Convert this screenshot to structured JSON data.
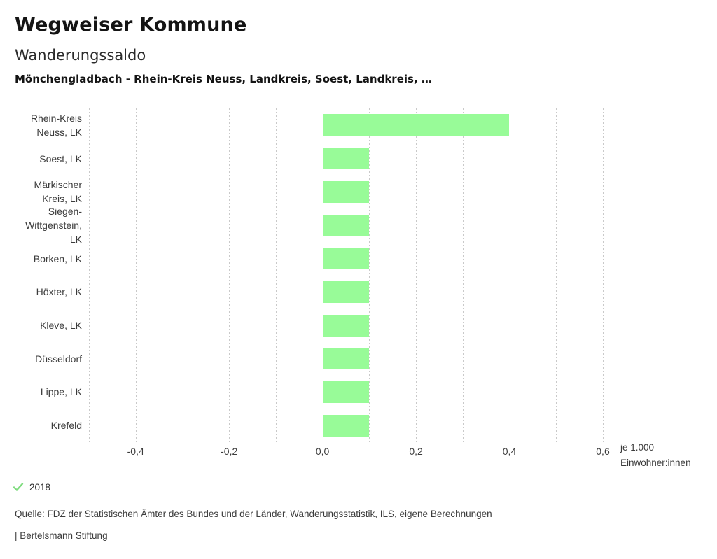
{
  "header": {
    "title": "Wegweiser Kommune",
    "subtitle": "Wanderungssaldo",
    "description": "Mönchengladbach - Rhein-Kreis Neuss, Landkreis, Soest, Landkreis, …"
  },
  "chart_data": {
    "type": "bar",
    "orientation": "horizontal",
    "categories": [
      {
        "label": "Rhein-Kreis Neuss, LK",
        "lines": [
          "Rhein-Kreis",
          "Neuss, LK"
        ],
        "value": 0.4
      },
      {
        "label": "Soest, LK",
        "lines": [
          "Soest, LK"
        ],
        "value": 0.1
      },
      {
        "label": "Märkischer Kreis, LK",
        "lines": [
          "Märkischer",
          "Kreis, LK"
        ],
        "value": 0.1
      },
      {
        "label": "Siegen-Wittgenstein, LK",
        "lines": [
          "Siegen-",
          "Wittgenstein,",
          "LK"
        ],
        "value": 0.1
      },
      {
        "label": "Borken, LK",
        "lines": [
          "Borken, LK"
        ],
        "value": 0.1
      },
      {
        "label": "Höxter, LK",
        "lines": [
          "Höxter, LK"
        ],
        "value": 0.1
      },
      {
        "label": "Kleve, LK",
        "lines": [
          "Kleve, LK"
        ],
        "value": 0.1
      },
      {
        "label": "Düsseldorf",
        "lines": [
          "Düsseldorf"
        ],
        "value": 0.1
      },
      {
        "label": "Lippe, LK",
        "lines": [
          "Lippe, LK"
        ],
        "value": 0.1
      },
      {
        "label": "Krefeld",
        "lines": [
          "Krefeld"
        ],
        "value": 0.1
      }
    ],
    "xlim": [
      -0.5,
      0.6
    ],
    "gridline_step": 0.1,
    "grid": true,
    "x_ticks": [
      -0.4,
      -0.2,
      0.0,
      0.2,
      0.4,
      0.6
    ],
    "x_tick_labels": [
      "-0,4",
      "-0,2",
      "0,0",
      "0,2",
      "0,4",
      "0,6"
    ],
    "unit_label_lines": [
      "je 1.000",
      "Einwohner:innen"
    ],
    "bar_color": "#98fb98",
    "gridline_color": "#c9c9c9"
  },
  "legend": {
    "year": "2018",
    "check_icon": "check-icon",
    "check_color": "#7fdc7f"
  },
  "footer": {
    "source": "Quelle: FDZ der Statistischen Ämter des Bundes und der Länder, Wanderungsstatistik, ILS, eigene Berechnungen",
    "attribution": "| Bertelsmann Stiftung"
  }
}
